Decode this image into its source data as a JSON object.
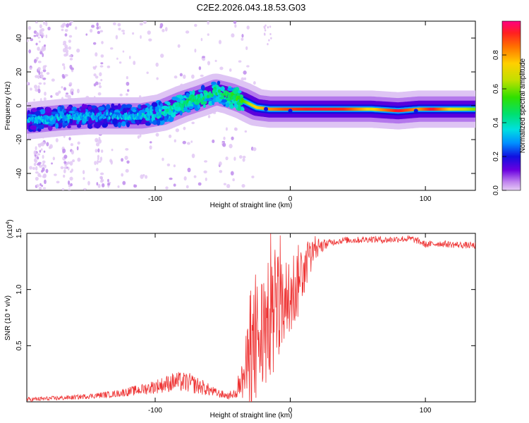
{
  "figure": {
    "title": "C2E2.2026.043.18.53.G03"
  },
  "chart_data": [
    {
      "type": "heatmap",
      "name": "frequency-spectrogram",
      "xlabel": "Height of straight line (km)",
      "ylabel": "Frequency (Hz)",
      "xlim": [
        -195,
        137
      ],
      "ylim": [
        -50,
        50
      ],
      "xticks": [
        -100,
        0,
        100
      ],
      "xtick_labels": [
        "-100",
        "0",
        "100"
      ],
      "yticks": [
        -40,
        -20,
        0,
        20,
        40
      ],
      "ytick_labels": [
        "-40",
        "-20",
        "0",
        "20",
        "40"
      ],
      "ridge": {
        "x": [
          -195,
          -170,
          -150,
          -130,
          -110,
          -95,
          -80,
          -65,
          -55,
          -45,
          -35,
          -25,
          -15,
          -5,
          0,
          20,
          40,
          60,
          80,
          95,
          105,
          120,
          137
        ],
        "freq": [
          -9,
          -7,
          -6,
          -6,
          -6,
          -4,
          1,
          5,
          8,
          6,
          3,
          -1,
          -2,
          -2,
          -2,
          -2,
          -2,
          -2,
          -3,
          -2,
          -2,
          -2,
          -2
        ],
        "amplitude": [
          0.3,
          0.33,
          0.3,
          0.3,
          0.33,
          0.36,
          0.42,
          0.45,
          0.42,
          0.45,
          0.55,
          0.75,
          0.82,
          0.88,
          0.9,
          0.95,
          0.92,
          0.72,
          0.95,
          0.8,
          0.95,
          0.72,
          0.6
        ]
      },
      "colorbar": {
        "label": "Normalized spectral amplitude",
        "range": [
          0,
          1
        ],
        "ticks": [
          0.0,
          0.2,
          0.4,
          0.6,
          0.8
        ],
        "tick_labels": [
          "0.0",
          "0.2",
          "0.4",
          "0.6",
          "0.8"
        ]
      }
    },
    {
      "type": "line",
      "name": "snr-profile",
      "xlabel": "Height of straight line (km)",
      "ylabel": "SNR (10 * v/v)",
      "y_multiplier": "(x10",
      "y_multiplier_exp": "4",
      "y_multiplier_close": ")",
      "xlim": [
        -195,
        137
      ],
      "ylim": [
        0,
        1.5
      ],
      "xticks": [
        -100,
        0,
        100
      ],
      "xtick_labels": [
        "-100",
        "0",
        "100"
      ],
      "yticks": [
        0.5,
        1.0,
        1.5
      ],
      "ytick_labels": [
        "0.5",
        "1.0",
        "1.5"
      ],
      "color": "#ee3333",
      "envelope": {
        "x": [
          -195,
          -160,
          -130,
          -110,
          -95,
          -85,
          -75,
          -65,
          -55,
          -45,
          -40,
          -35,
          -30,
          -25,
          -20,
          -15,
          -10,
          -5,
          0,
          5,
          10,
          15,
          20,
          25,
          30,
          35,
          40,
          50,
          60,
          70,
          80,
          90,
          95,
          100,
          110,
          120,
          137
        ],
        "base": [
          0.02,
          0.04,
          0.07,
          0.11,
          0.15,
          0.18,
          0.17,
          0.13,
          0.08,
          0.05,
          0.08,
          0.2,
          0.38,
          0.52,
          0.6,
          0.72,
          0.8,
          0.85,
          0.95,
          1.05,
          1.2,
          1.3,
          1.36,
          1.4,
          1.42,
          1.43,
          1.44,
          1.44,
          1.45,
          1.44,
          1.45,
          1.45,
          1.43,
          1.4,
          1.41,
          1.4,
          1.39
        ],
        "spread": [
          0.02,
          0.02,
          0.03,
          0.05,
          0.07,
          0.09,
          0.09,
          0.07,
          0.04,
          0.03,
          0.05,
          0.2,
          0.45,
          0.6,
          0.6,
          0.55,
          0.5,
          0.45,
          0.4,
          0.35,
          0.25,
          0.15,
          0.08,
          0.05,
          0.03,
          0.03,
          0.03,
          0.03,
          0.03,
          0.03,
          0.03,
          0.03,
          0.03,
          0.03,
          0.03,
          0.03,
          0.03
        ]
      }
    }
  ]
}
